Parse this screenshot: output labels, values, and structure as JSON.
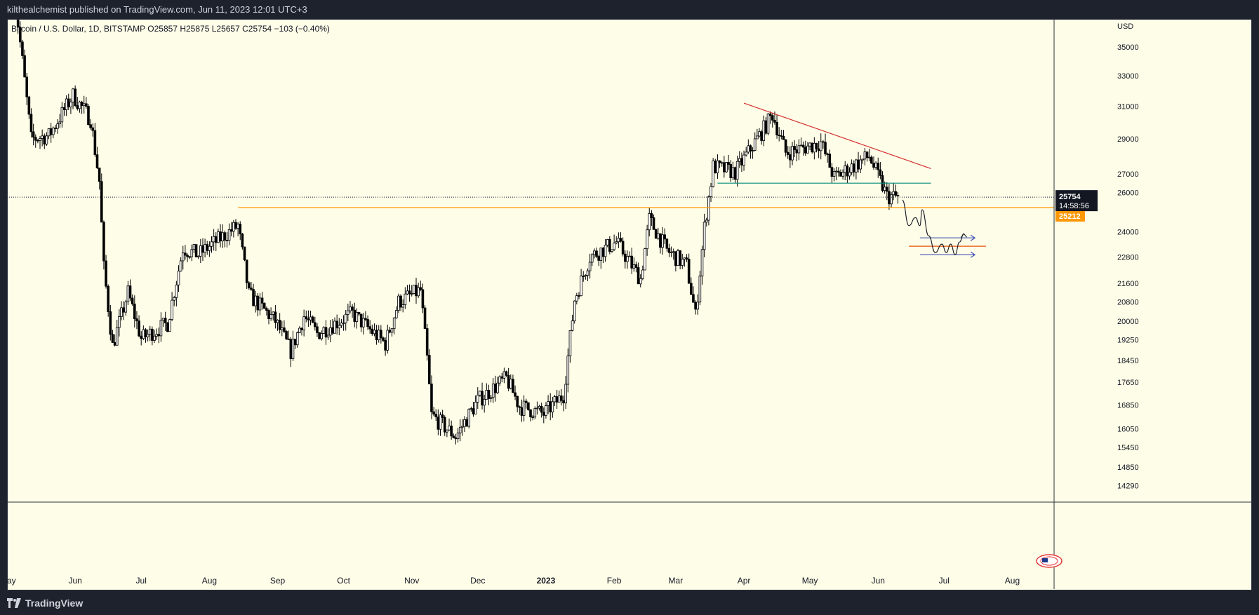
{
  "header": {
    "publish_line": "kilthealchemist published on TradingView.com, Jun 11, 2023 12:01 UTC+3"
  },
  "symbol": {
    "name": "Bitcoin / U.S. Dollar, 1D, BITSTAMP",
    "open": "O25857",
    "high": "H25875",
    "low": "L25657",
    "close": "C25754",
    "change": "−103 (−0.40%)"
  },
  "axis": {
    "currency": "USD",
    "price_ticks": [
      "35000",
      "33000",
      "31000",
      "29000",
      "27000",
      "26000",
      "24000",
      "22800",
      "21600",
      "20800",
      "20000",
      "19250",
      "18450",
      "17650",
      "16850",
      "16050",
      "15450",
      "14850",
      "14290"
    ],
    "time_ticks": [
      "ay",
      "Jun",
      "Jul",
      "Aug",
      "Sep",
      "Oct",
      "Nov",
      "Dec",
      "2023",
      "Feb",
      "Mar",
      "Apr",
      "May",
      "Jun",
      "Jul",
      "Aug"
    ]
  },
  "labels": {
    "last_price": "25754",
    "countdown": "14:58:56",
    "level_price": "25212"
  },
  "footer": {
    "brand": "TradingView"
  },
  "colors": {
    "background": "#fefde8",
    "candle": "#000000",
    "resistance_line": "#d32f2f",
    "support_line": "#00897b",
    "horizontal_level": "#ff9800",
    "projection_arrows": "#3f51b5",
    "target_line": "#e65100"
  },
  "chart_data": {
    "type": "candlestick",
    "title": "",
    "xlabel": "",
    "ylabel": "",
    "y_scale": "log",
    "ylim": [
      13900,
      37000
    ],
    "x_range": [
      "2022-05-01",
      "2023-08-20"
    ],
    "approx_closes": [
      {
        "date": "2022-05-04",
        "value": 39500
      },
      {
        "date": "2022-05-08",
        "value": 34000
      },
      {
        "date": "2022-05-12",
        "value": 29000
      },
      {
        "date": "2022-05-20",
        "value": 29200
      },
      {
        "date": "2022-05-31",
        "value": 31700
      },
      {
        "date": "2022-06-08",
        "value": 30200
      },
      {
        "date": "2022-06-12",
        "value": 26600
      },
      {
        "date": "2022-06-14",
        "value": 22300
      },
      {
        "date": "2022-06-18",
        "value": 19000
      },
      {
        "date": "2022-06-25",
        "value": 21200
      },
      {
        "date": "2022-07-01",
        "value": 19300
      },
      {
        "date": "2022-07-13",
        "value": 19900
      },
      {
        "date": "2022-07-20",
        "value": 23200
      },
      {
        "date": "2022-07-27",
        "value": 22900
      },
      {
        "date": "2022-08-01",
        "value": 23300
      },
      {
        "date": "2022-08-14",
        "value": 24300
      },
      {
        "date": "2022-08-19",
        "value": 21100
      },
      {
        "date": "2022-08-31",
        "value": 20000
      },
      {
        "date": "2022-09-07",
        "value": 18800
      },
      {
        "date": "2022-09-13",
        "value": 20200
      },
      {
        "date": "2022-09-19",
        "value": 19500
      },
      {
        "date": "2022-10-05",
        "value": 20300
      },
      {
        "date": "2022-10-20",
        "value": 19100
      },
      {
        "date": "2022-10-26",
        "value": 20800
      },
      {
        "date": "2022-11-05",
        "value": 21300
      },
      {
        "date": "2022-11-08",
        "value": 18500
      },
      {
        "date": "2022-11-10",
        "value": 16500
      },
      {
        "date": "2022-11-21",
        "value": 15800
      },
      {
        "date": "2022-12-01",
        "value": 17000
      },
      {
        "date": "2022-12-14",
        "value": 17800
      },
      {
        "date": "2022-12-20",
        "value": 16800
      },
      {
        "date": "2022-12-31",
        "value": 16550
      },
      {
        "date": "2023-01-09",
        "value": 17200
      },
      {
        "date": "2023-01-14",
        "value": 20900
      },
      {
        "date": "2023-01-21",
        "value": 22800
      },
      {
        "date": "2023-02-02",
        "value": 23500
      },
      {
        "date": "2023-02-13",
        "value": 21800
      },
      {
        "date": "2023-02-17",
        "value": 24600
      },
      {
        "date": "2023-02-25",
        "value": 23100
      },
      {
        "date": "2023-03-06",
        "value": 22400
      },
      {
        "date": "2023-03-10",
        "value": 20200
      },
      {
        "date": "2023-03-14",
        "value": 24200
      },
      {
        "date": "2023-03-18",
        "value": 27400
      },
      {
        "date": "2023-03-28",
        "value": 27100
      },
      {
        "date": "2023-04-10",
        "value": 29600
      },
      {
        "date": "2023-04-14",
        "value": 30500
      },
      {
        "date": "2023-04-20",
        "value": 28200
      },
      {
        "date": "2023-04-26",
        "value": 28400
      },
      {
        "date": "2023-05-06",
        "value": 28800
      },
      {
        "date": "2023-05-12",
        "value": 26800
      },
      {
        "date": "2023-05-28",
        "value": 28000
      },
      {
        "date": "2023-06-05",
        "value": 25800
      },
      {
        "date": "2023-06-10",
        "value": 25754
      }
    ],
    "drawings": [
      {
        "kind": "trendline",
        "name": "descending-resistance",
        "from": {
          "date": "2023-04-01",
          "value": 31200
        },
        "to": {
          "date": "2023-06-25",
          "value": 27300
        }
      },
      {
        "kind": "horizontal",
        "name": "support",
        "value": 26500,
        "from": "2023-03-20",
        "to": "2023-06-25"
      },
      {
        "kind": "horizontal",
        "name": "orange-level",
        "value": 25212,
        "from": "2022-08-14",
        "to": "2023-08-20"
      },
      {
        "kind": "horizontal",
        "name": "target",
        "value": 23300,
        "from": "2023-06-15",
        "to": "2023-07-20"
      },
      {
        "kind": "arrow",
        "name": "upper-arrow",
        "value": 23700,
        "from": "2023-06-20",
        "to": "2023-07-15"
      },
      {
        "kind": "arrow",
        "name": "lower-arrow",
        "value": 22900,
        "from": "2023-06-20",
        "to": "2023-07-15"
      }
    ],
    "projection_path": [
      {
        "date": "2023-06-12",
        "value": 25600
      },
      {
        "date": "2023-06-15",
        "value": 24300
      },
      {
        "date": "2023-06-18",
        "value": 24700
      },
      {
        "date": "2023-06-20",
        "value": 24300
      },
      {
        "date": "2023-06-21",
        "value": 25100
      },
      {
        "date": "2023-06-24",
        "value": 23800
      },
      {
        "date": "2023-06-27",
        "value": 23000
      },
      {
        "date": "2023-06-30",
        "value": 23400
      },
      {
        "date": "2023-07-02",
        "value": 23000
      },
      {
        "date": "2023-07-04",
        "value": 23400
      },
      {
        "date": "2023-07-06",
        "value": 22900
      },
      {
        "date": "2023-07-08",
        "value": 23500
      },
      {
        "date": "2023-07-10",
        "value": 23900
      }
    ]
  }
}
